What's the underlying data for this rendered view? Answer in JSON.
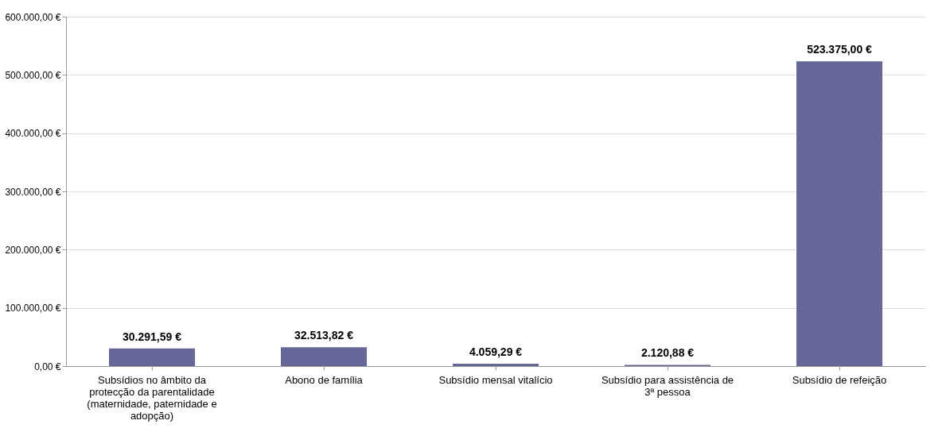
{
  "chart_data": {
    "type": "bar",
    "categories": [
      "Subsídios no âmbito da protecção da parentalidade (maternidade, paternidade e adopção)",
      "Abono de família",
      "Subsídio mensal vitalício",
      "Subsídio para assistência de 3ª pessoa",
      "Subsídio de refeição"
    ],
    "values": [
      30291.59,
      32513.82,
      4059.29,
      2120.88,
      523375.0
    ],
    "value_labels": [
      "30.291,59 €",
      "32.513,82 €",
      "4.059,29 €",
      "2.120,88 €",
      "523.375,00 €"
    ],
    "color": "#666699",
    "ylim": [
      0,
      600000
    ],
    "yticks": [
      {
        "value": 0,
        "label": "0,00 €"
      },
      {
        "value": 100000,
        "label": "100.000,00 €"
      },
      {
        "value": 200000,
        "label": "200.000,00 €"
      },
      {
        "value": 300000,
        "label": "300.000,00 €"
      },
      {
        "value": 400000,
        "label": "400.000,00 €"
      },
      {
        "value": 500000,
        "label": "500.000,00 €"
      },
      {
        "value": 600000,
        "label": "600.000,00 €"
      }
    ],
    "grid": "y"
  }
}
